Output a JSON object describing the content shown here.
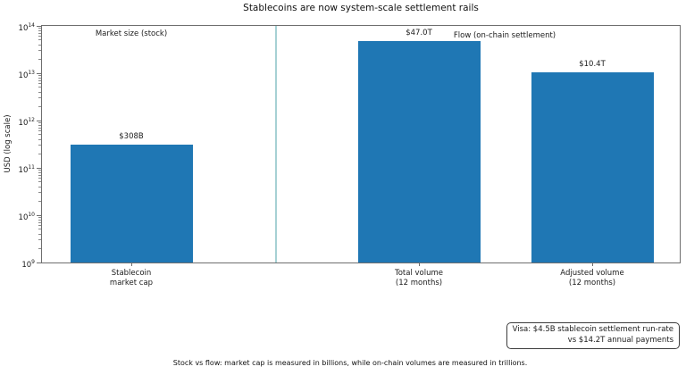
{
  "title": "Stablecoins are now system-scale settlement rails",
  "chart_data": {
    "type": "bar",
    "scale": "log",
    "title": "Stablecoins are now system-scale settlement rails",
    "xlabel": "",
    "ylabel": "USD (log scale)",
    "ylim": [
      1000000000,
      100000000000000
    ],
    "ytick_exponents": [
      9,
      10,
      11,
      12,
      13,
      14
    ],
    "grid": false,
    "categories": [
      "Stablecoin\nmarket cap",
      "Total volume\n(12 months)",
      "Adjusted volume\n(12 months)"
    ],
    "values": [
      308000000000,
      47000000000000,
      10400000000000
    ],
    "bar_labels": [
      "$308B",
      "$47.0T",
      "$10.4T"
    ],
    "bar_color": "#1f77b4",
    "divider_color": "#a6d1d4",
    "annotations": [
      {
        "text": "Market size (stock)"
      },
      {
        "text": "Flow (on-chain settlement)"
      }
    ]
  },
  "visa_note": {
    "line1": "Visa: $4.5B stablecoin settlement run-rate",
    "line2": "vs $14.2T annual payments"
  },
  "caption": "Stock vs flow: market cap is measured in billions, while on-chain volumes are measured in trillions."
}
